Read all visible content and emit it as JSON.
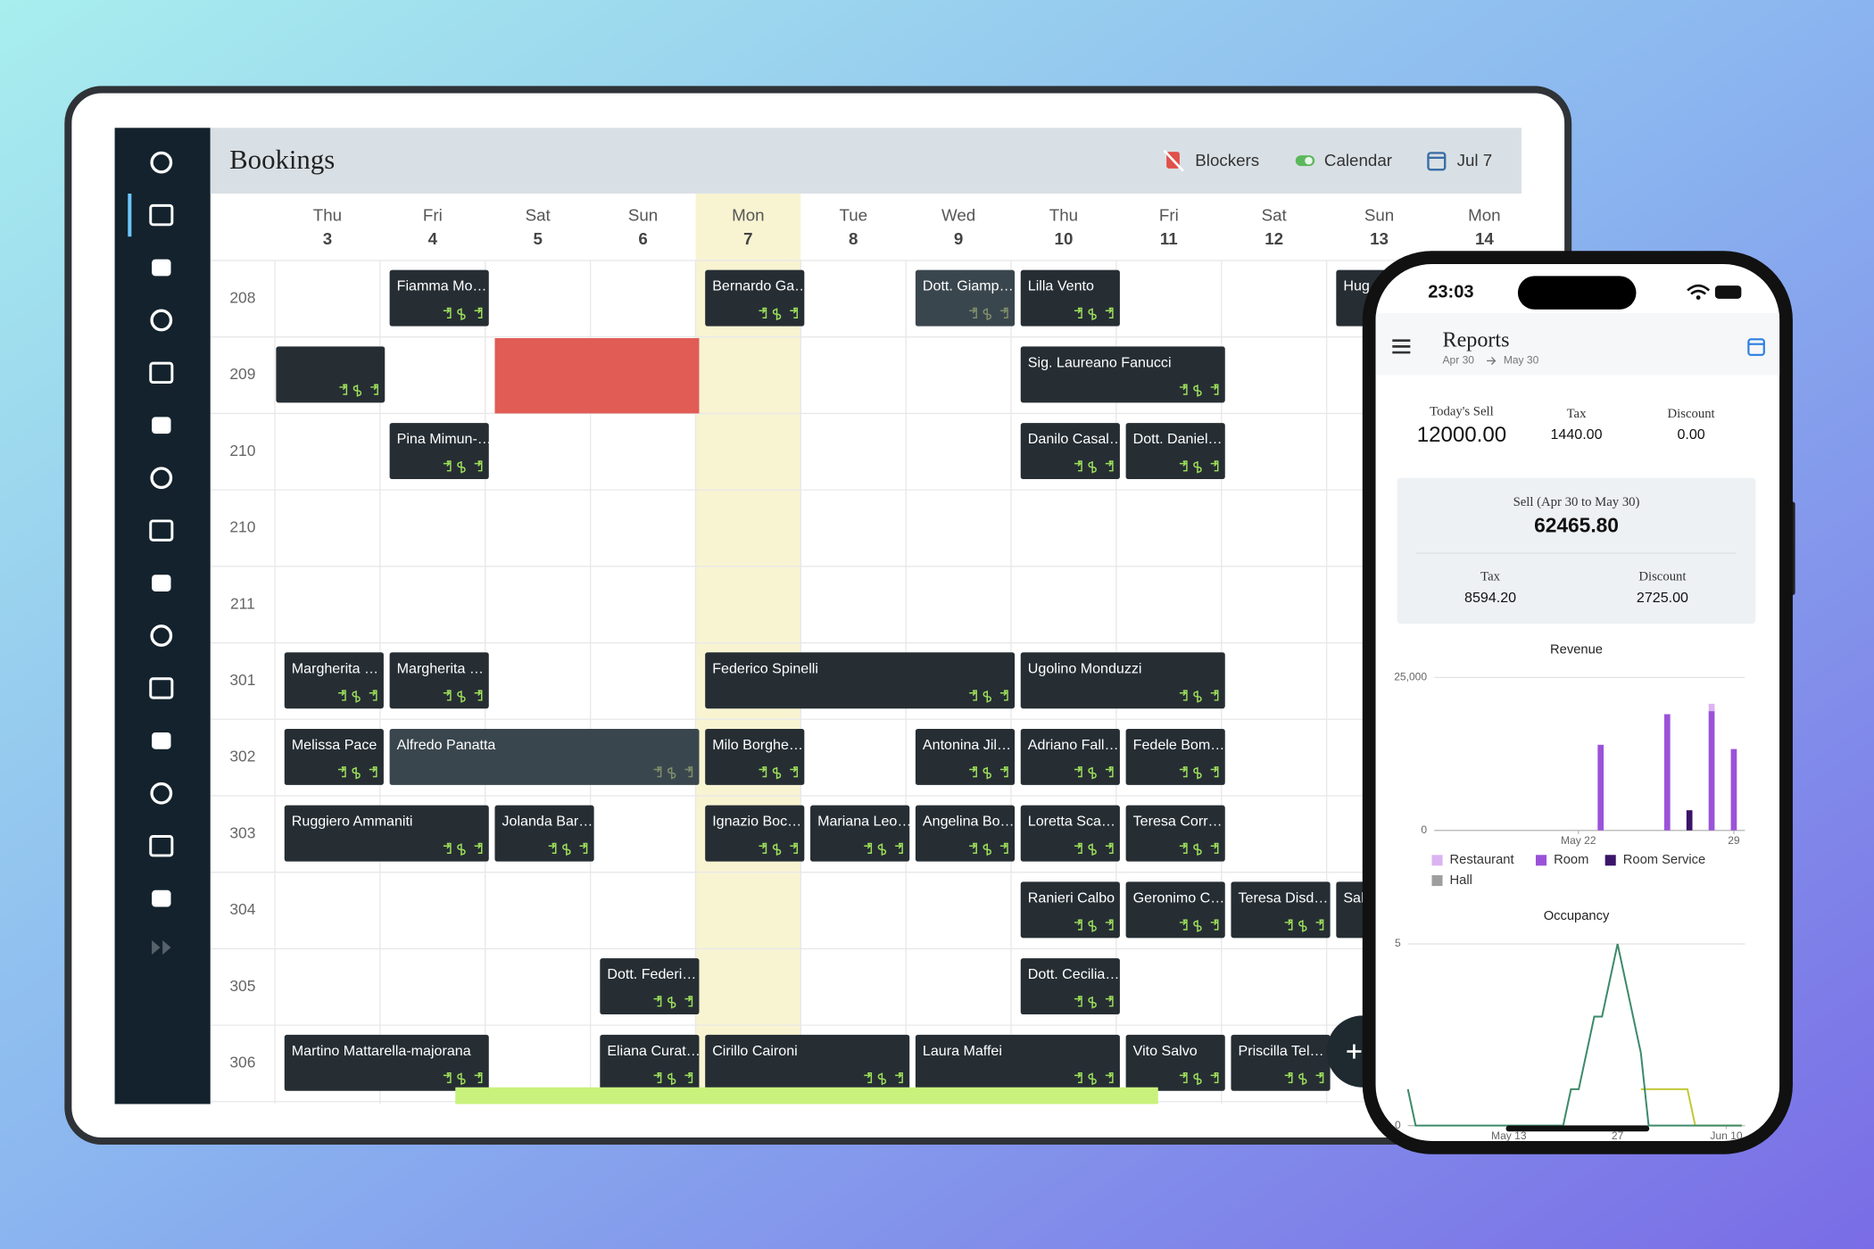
{
  "header": {
    "title": "Bookings",
    "blockers": "Blockers",
    "calendar": "Calendar",
    "date": "Jul 7"
  },
  "days": [
    {
      "weekday": "Thu",
      "day": "3"
    },
    {
      "weekday": "Fri",
      "day": "4"
    },
    {
      "weekday": "Sat",
      "day": "5"
    },
    {
      "weekday": "Sun",
      "day": "6"
    },
    {
      "weekday": "Mon",
      "day": "7"
    },
    {
      "weekday": "Tue",
      "day": "8"
    },
    {
      "weekday": "Wed",
      "day": "9"
    },
    {
      "weekday": "Thu",
      "day": "10"
    },
    {
      "weekday": "Fri",
      "day": "11"
    },
    {
      "weekday": "Sat",
      "day": "12"
    },
    {
      "weekday": "Sun",
      "day": "13"
    },
    {
      "weekday": "Mon",
      "day": "14"
    }
  ],
  "rooms": [
    {
      "number": "208",
      "bookings": [
        {
          "name": "Fiamma Mo…"
        },
        {
          "name": "Bernardo Ga…"
        },
        {
          "name": "Dott. Giamp…"
        },
        {
          "name": "Lilla Vento"
        },
        {
          "name": "Hug"
        }
      ]
    },
    {
      "number": "209",
      "bookings": [
        {
          "name": "Sig. Laureano Fanucci"
        }
      ]
    },
    {
      "number": "210",
      "bookings": [
        {
          "name": "Pina Mimun-…"
        },
        {
          "name": "Danilo Casal…"
        },
        {
          "name": "Dott. Daniel…"
        }
      ]
    },
    {
      "number": "210",
      "bookings": []
    },
    {
      "number": "211",
      "bookings": []
    },
    {
      "number": "301",
      "bookings": [
        {
          "name": "Margherita …"
        },
        {
          "name": "Margherita …"
        },
        {
          "name": "Federico Spinelli"
        },
        {
          "name": "Ugolino Monduzzi"
        }
      ]
    },
    {
      "number": "302",
      "bookings": [
        {
          "name": "Melissa Pace"
        },
        {
          "name": "Alfredo Panatta"
        },
        {
          "name": "Milo Borghe…"
        },
        {
          "name": "Antonina Jil…"
        },
        {
          "name": "Adriano Fall…"
        },
        {
          "name": "Fedele Bom…"
        }
      ]
    },
    {
      "number": "303",
      "bookings": [
        {
          "name": "Ruggiero Ammaniti"
        },
        {
          "name": "Jolanda Bar…"
        },
        {
          "name": "Ignazio Boc…"
        },
        {
          "name": "Mariana Leo…"
        },
        {
          "name": "Angelina Bo…"
        },
        {
          "name": "Loretta Sca…"
        },
        {
          "name": "Teresa Corr…"
        }
      ]
    },
    {
      "number": "304",
      "bookings": [
        {
          "name": "Ranieri Calbo"
        },
        {
          "name": "Geronimo C…"
        },
        {
          "name": "Teresa Disd…"
        },
        {
          "name": "Sal"
        }
      ]
    },
    {
      "number": "305",
      "bookings": [
        {
          "name": "Dott. Federi…"
        },
        {
          "name": "Dott. Cecilia…"
        }
      ]
    },
    {
      "number": "306",
      "bookings": [
        {
          "name": "Martino Mattarella-majorana"
        },
        {
          "name": "Eliana Curat…"
        },
        {
          "name": "Cirillo Caironi"
        },
        {
          "name": "Laura Maffei"
        },
        {
          "name": "Vito Salvo"
        },
        {
          "name": "Priscilla Tel…"
        }
      ]
    }
  ],
  "phone": {
    "time": "23:03",
    "title": "Reports",
    "range_start": "Apr 30",
    "range_end": "May 30",
    "today_sell": {
      "label": "Today's Sell",
      "value": "12000.00"
    },
    "tax": {
      "label": "Tax",
      "value": "1440.00"
    },
    "discount": {
      "label": "Discount",
      "value": "0.00"
    },
    "period": {
      "label": "Sell  (Apr 30 to May 30)",
      "value": "62465.80",
      "tax": {
        "label": "Tax",
        "value": "8594.20"
      },
      "discount": {
        "label": "Discount",
        "value": "2725.00"
      }
    },
    "revenue_chart": {
      "type": "bar",
      "title": "Revenue",
      "grid": true,
      "x": [
        23,
        26,
        27,
        28,
        29
      ],
      "xlim": [
        15.5,
        29.5
      ],
      "xticks": [
        {
          "value": 22,
          "label": "May 22"
        },
        29
      ],
      "ylim": [
        0,
        25000
      ],
      "yticks": [
        0,
        {
          "value": 25000,
          "label": "25,000"
        }
      ],
      "series": [
        {
          "name": "Room",
          "color": "#9b52d9",
          "values": [
            14000,
            19000,
            0,
            19500,
            13300
          ]
        },
        {
          "name": "Restaurant",
          "color": "#dcb3f2",
          "values": [
            0,
            0,
            0,
            1200,
            0
          ]
        },
        {
          "name": "Room Service",
          "color": "#3b1468",
          "values": [
            0,
            0,
            3300,
            0,
            0
          ]
        },
        {
          "name": "Hall",
          "color": "#9e9e9e",
          "values": [
            0,
            0,
            0,
            0,
            0
          ]
        }
      ]
    },
    "occupancy_chart": {
      "type": "line",
      "title": "Occupancy",
      "grid": true,
      "xlim": [
        0,
        43.4
      ],
      "xticks": [
        {
          "value": 13,
          "label": "May 13"
        },
        27,
        {
          "value": 41,
          "label": "Jun 10"
        }
      ],
      "ylim": [
        0,
        5
      ],
      "yticks": [
        0,
        5
      ],
      "series": [
        {
          "color": "#c2c83a",
          "x": [
            30,
            36,
            37,
            43
          ],
          "values": [
            1,
            1,
            0,
            0
          ]
        },
        {
          "color": "#3d8a6a",
          "x": [
            0,
            1,
            20,
            21,
            22,
            23,
            24,
            25,
            26,
            27,
            28,
            29,
            30,
            31,
            43
          ],
          "values": [
            1,
            0,
            0,
            1,
            1,
            2,
            3,
            3,
            4,
            5,
            4,
            3,
            2,
            0,
            0
          ]
        }
      ]
    }
  }
}
